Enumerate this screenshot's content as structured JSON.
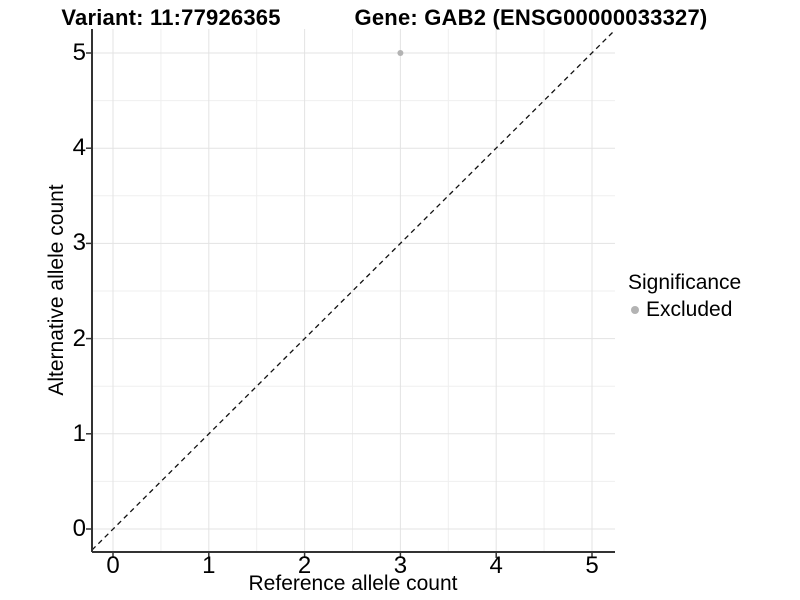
{
  "titles": {
    "variant": "Variant: 11:77926365",
    "gene": "Gene: GAB2 (ENSG00000033327)"
  },
  "legend": {
    "title": "Significance",
    "items": [
      {
        "label": "Excluded",
        "color": "#b3b3b3"
      }
    ]
  },
  "colors": {
    "background": "#ffffff",
    "grid_major": "#e3e3e3",
    "grid_minor": "#efefef",
    "axis_line": "#333333",
    "tick_mark": "#333333",
    "reference_line": "#111111",
    "point": "#b3b3b3",
    "text": "#000000"
  },
  "chart_data": {
    "type": "scatter",
    "title": "Variant: 11:77926365   |   Gene: GAB2 (ENSG00000033327)",
    "xlabel": "Reference allele count",
    "ylabel": "Alternative allele count",
    "xlim": [
      -0.25,
      5.25
    ],
    "ylim": [
      -0.25,
      5.25
    ],
    "x_ticks": [
      0,
      1,
      2,
      3,
      4,
      5
    ],
    "y_ticks": [
      0,
      1,
      2,
      3,
      4,
      5
    ],
    "minor_ticks": [
      0.5,
      1.5,
      2.5,
      3.5,
      4.5
    ],
    "grid": true,
    "legend_position": "right",
    "legend_title": "Significance",
    "series": [
      {
        "name": "Excluded",
        "color": "#b3b3b3",
        "marker": "circle",
        "points": [
          {
            "x": 3,
            "y": 5
          }
        ]
      }
    ],
    "reference_line": {
      "type": "identity-diagonal",
      "equation": "y = x",
      "style": "dashed",
      "color": "#111111"
    }
  }
}
